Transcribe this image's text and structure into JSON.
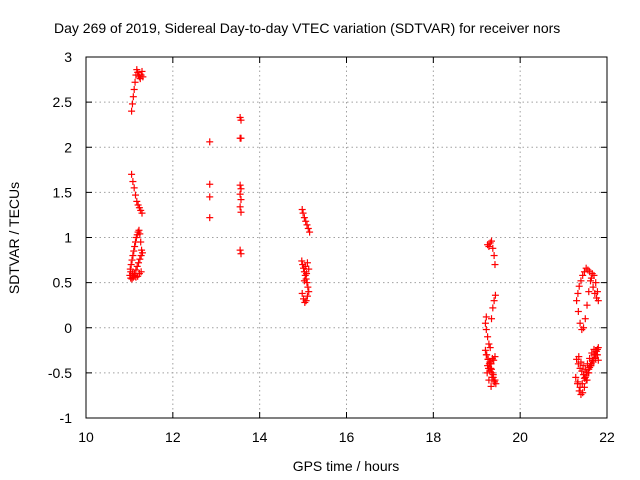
{
  "chart_data": {
    "type": "scatter",
    "title": "Day 269 of 2019, Sidereal Day-to-day VTEC variation (SDTVAR) for receiver nors",
    "xlabel": "GPS time / hours",
    "ylabel": "SDTVAR / TECUs",
    "xlim": [
      10,
      22
    ],
    "ylim": [
      -1,
      3
    ],
    "xticks": [
      "10",
      "12",
      "14",
      "16",
      "18",
      "20",
      "22"
    ],
    "yticks": [
      "-1",
      "-0.5",
      "0",
      "0.5",
      "1",
      "1.5",
      "2",
      "2.5",
      "3"
    ],
    "grid": true,
    "marker": "+",
    "color": "#ff0000",
    "series": [
      {
        "name": "SDTVAR",
        "x": [
          11.05,
          11.07,
          11.09,
          11.11,
          11.13,
          11.15,
          11.17,
          11.19,
          11.21,
          11.23,
          11.25,
          11.27,
          11.29,
          11.31,
          11.05,
          11.08,
          11.11,
          11.14,
          11.17,
          11.2,
          11.23,
          11.26,
          11.29,
          11.02,
          11.04,
          11.06,
          11.08,
          11.1,
          11.12,
          11.14,
          11.16,
          11.18,
          11.2,
          11.22,
          11.24,
          11.26,
          11.28,
          11.3,
          11.27,
          11.24,
          11.21,
          11.18,
          11.15,
          11.12,
          11.09,
          11.06,
          11.03,
          11.01,
          11.03,
          11.07,
          11.11,
          11.15,
          11.19,
          11.23,
          11.27,
          12.85,
          12.85,
          12.85,
          12.85,
          13.55,
          13.57,
          13.55,
          13.57,
          13.55,
          13.57,
          13.55,
          13.57,
          13.55,
          13.57,
          13.55,
          13.57,
          14.98,
          15.0,
          15.03,
          15.06,
          15.09,
          15.12,
          15.15,
          14.97,
          14.99,
          15.01,
          15.03,
          15.05,
          15.07,
          15.09,
          15.11,
          15.13,
          15.1,
          15.07,
          15.04,
          15.01,
          14.98,
          15.05,
          15.1,
          15.13,
          15.08,
          15.03,
          19.25,
          19.28,
          19.31,
          19.34,
          19.37,
          19.4,
          19.42,
          19.22,
          19.2,
          19.22,
          19.25,
          19.28,
          19.31,
          19.34,
          19.37,
          19.4,
          19.43,
          19.2,
          19.23,
          19.26,
          19.29,
          19.32,
          19.35,
          19.38,
          19.41,
          19.44,
          19.42,
          19.38,
          19.34,
          19.3,
          19.26,
          19.22,
          19.25,
          19.3,
          19.35,
          19.4,
          19.33,
          19.28,
          19.24,
          19.3,
          19.36,
          19.42,
          19.27,
          19.33,
          19.39,
          21.3,
          21.33,
          21.36,
          21.4,
          21.44,
          21.48,
          21.52,
          21.56,
          21.6,
          21.64,
          21.68,
          21.72,
          21.76,
          21.8,
          21.78,
          21.74,
          21.7,
          21.66,
          21.62,
          21.58,
          21.54,
          21.5,
          21.46,
          21.42,
          21.38,
          21.34,
          21.28,
          21.32,
          21.36,
          21.4,
          21.44,
          21.48,
          21.52,
          21.56,
          21.6,
          21.64,
          21.68,
          21.72,
          21.76,
          21.8,
          21.3,
          21.34,
          21.38,
          21.42,
          21.46,
          21.5,
          21.54,
          21.58,
          21.62,
          21.66,
          21.7,
          21.74,
          21.78,
          21.35,
          21.4,
          21.45,
          21.5,
          21.55,
          21.6,
          21.65,
          21.7,
          21.75,
          21.8,
          21.33,
          21.38,
          21.43,
          21.48,
          21.53,
          21.58,
          21.63,
          21.68,
          21.73,
          21.78
        ],
        "y": [
          2.4,
          2.48,
          2.56,
          2.64,
          2.72,
          2.8,
          2.86,
          2.83,
          2.8,
          2.78,
          2.76,
          2.8,
          2.84,
          2.78,
          1.7,
          1.62,
          1.55,
          1.47,
          1.4,
          1.36,
          1.33,
          1.3,
          1.27,
          0.65,
          0.7,
          0.75,
          0.8,
          0.85,
          0.9,
          0.95,
          1.0,
          1.03,
          1.06,
          1.08,
          1.04,
          0.95,
          0.86,
          0.83,
          0.8,
          0.76,
          0.72,
          0.68,
          0.64,
          0.6,
          0.56,
          0.54,
          0.55,
          0.58,
          0.62,
          0.6,
          0.58,
          0.56,
          0.57,
          0.6,
          0.62,
          2.06,
          1.59,
          1.45,
          1.22,
          2.33,
          2.3,
          2.1,
          2.1,
          1.58,
          1.54,
          1.48,
          1.42,
          1.34,
          1.28,
          0.86,
          0.82,
          1.31,
          1.27,
          1.22,
          1.18,
          1.14,
          1.1,
          1.06,
          0.74,
          0.7,
          0.66,
          0.62,
          0.58,
          0.54,
          0.5,
          0.45,
          0.4,
          0.35,
          0.3,
          0.28,
          0.32,
          0.38,
          0.68,
          0.72,
          0.65,
          0.6,
          0.52,
          0.92,
          0.9,
          0.94,
          0.96,
          0.88,
          0.8,
          0.7,
          0.12,
          0.05,
          -0.02,
          -0.1,
          -0.18,
          -0.22,
          0.1,
          0.22,
          0.3,
          0.36,
          -0.25,
          -0.3,
          -0.35,
          -0.4,
          -0.45,
          -0.5,
          -0.55,
          -0.6,
          -0.62,
          -0.58,
          -0.52,
          -0.46,
          -0.4,
          -0.35,
          -0.3,
          -0.42,
          -0.48,
          -0.55,
          -0.6,
          -0.65,
          -0.58,
          -0.5,
          -0.38,
          -0.34,
          -0.32,
          -0.45,
          -0.4,
          -0.36,
          0.3,
          0.38,
          0.46,
          0.52,
          0.58,
          0.62,
          0.66,
          0.64,
          0.62,
          0.55,
          0.45,
          0.38,
          0.33,
          0.3,
          0.4,
          0.5,
          0.58,
          0.6,
          0.52,
          0.4,
          0.25,
          0.1,
          0.0,
          -0.02,
          0.05,
          0.18,
          -0.55,
          -0.62,
          -0.7,
          -0.74,
          -0.72,
          -0.66,
          -0.58,
          -0.5,
          -0.44,
          -0.4,
          -0.36,
          -0.3,
          -0.26,
          -0.22,
          -0.35,
          -0.4,
          -0.45,
          -0.48,
          -0.52,
          -0.55,
          -0.58,
          -0.5,
          -0.42,
          -0.36,
          -0.3,
          -0.26,
          -0.24,
          -0.32,
          -0.38,
          -0.42,
          -0.46,
          -0.4,
          -0.34,
          -0.28,
          -0.24,
          -0.3,
          -0.36,
          -0.6,
          -0.66,
          -0.62,
          -0.56,
          -0.5,
          -0.46,
          -0.42,
          -0.38,
          -0.34,
          -0.3
        ]
      }
    ]
  }
}
